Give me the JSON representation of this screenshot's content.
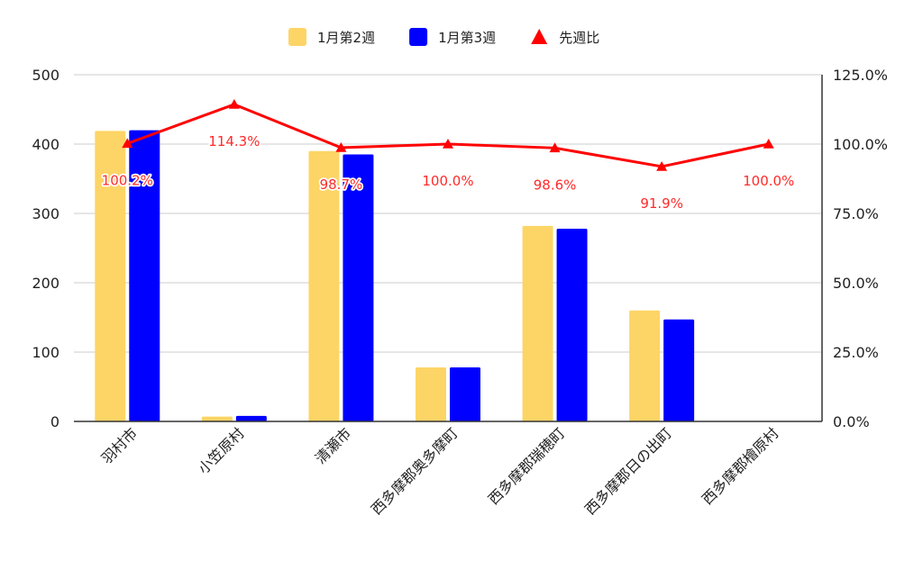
{
  "chart_data": {
    "type": "bar",
    "categories": [
      "羽村市",
      "小笠原村",
      "清瀬市",
      "西多摩郡奥多摩町",
      "西多摩郡瑞穂町",
      "西多摩郡日の出町",
      "西多摩郡檜原村"
    ],
    "series": [
      {
        "name": "1月第2週",
        "type": "bar",
        "axis": "left",
        "color": "#fdd566",
        "values": [
          419,
          7,
          390,
          78,
          282,
          160,
          0
        ]
      },
      {
        "name": "1月第3週",
        "type": "bar",
        "axis": "left",
        "color": "#0000ff",
        "values": [
          420,
          8,
          385,
          78,
          278,
          147,
          0
        ]
      },
      {
        "name": "先週比",
        "type": "line",
        "axis": "right",
        "color": "#ff0000",
        "marker": "triangle",
        "values": [
          100.2,
          114.3,
          98.7,
          100.0,
          98.6,
          91.9,
          100.0
        ],
        "labels": [
          "100.2%",
          "114.3%",
          "98.7%",
          "100.0%",
          "98.6%",
          "91.9%",
          "100.0%"
        ]
      }
    ],
    "left_axis": {
      "ylim": [
        0,
        500
      ],
      "ticks": [
        0,
        100,
        200,
        300,
        400,
        500
      ],
      "tick_labels": [
        "0",
        "100",
        "200",
        "300",
        "400",
        "500"
      ]
    },
    "right_axis": {
      "ylim": [
        0,
        125
      ],
      "ticks": [
        0,
        25,
        50,
        75,
        100,
        125
      ],
      "tick_labels": [
        "0.0%",
        "25.0%",
        "50.0%",
        "75.0%",
        "100.0%",
        "125.0%"
      ]
    },
    "grid": true,
    "legend": "top-center"
  }
}
